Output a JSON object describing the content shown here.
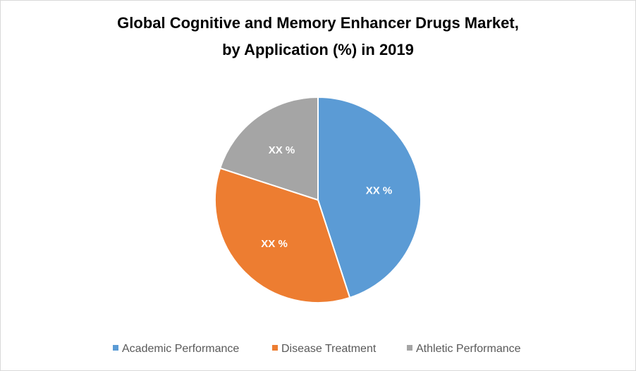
{
  "chart_data": {
    "type": "pie",
    "title": [
      "Global Cognitive and Memory Enhancer Drugs Market,",
      "by Application (%) in 2019"
    ],
    "categories": [
      "Academic Performance",
      "Disease Treatment",
      "Athletic Performance"
    ],
    "values": [
      45,
      35,
      20
    ],
    "value_labels": [
      "XX %",
      "XX %",
      "XX %"
    ],
    "colors": [
      "#5b9bd5",
      "#ed7d31",
      "#a5a5a5"
    ],
    "legend": "bottom"
  }
}
